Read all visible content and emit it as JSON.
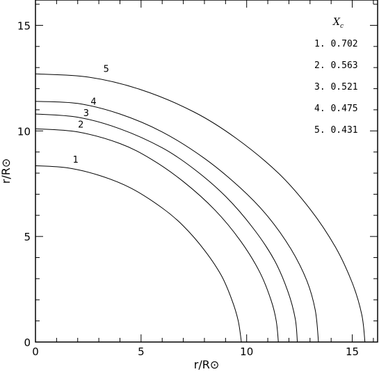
{
  "chart_data": {
    "type": "line",
    "title": "",
    "xlabel": "r/R⊙",
    "ylabel": "r/R⊙",
    "xlim": [
      0,
      16.2
    ],
    "ylim": [
      0,
      16.2
    ],
    "xticks": [
      0,
      5,
      10,
      15
    ],
    "yticks": [
      0,
      5,
      10,
      15
    ],
    "grid": false,
    "legend": {
      "title": "X",
      "title_sub": "c",
      "placement": "top-right",
      "entries": [
        "1. 0.702",
        "2. 0.563",
        "3. 0.521",
        "4. 0.475",
        "5. 0.431"
      ]
    },
    "series": [
      {
        "label": "1",
        "label_at": [
          1.9,
          8.5
        ],
        "equatorial_radius": 9.75,
        "polar_radius": 8.35,
        "points": [
          [
            0,
            8.35
          ],
          [
            1.5,
            8.25
          ],
          [
            3,
            7.9
          ],
          [
            4.5,
            7.3
          ],
          [
            6,
            6.35
          ],
          [
            7,
            5.5
          ],
          [
            8,
            4.35
          ],
          [
            8.8,
            3.15
          ],
          [
            9.3,
            2.0
          ],
          [
            9.6,
            1.0
          ],
          [
            9.75,
            0
          ]
        ]
      },
      {
        "label": "2",
        "label_at": [
          2.15,
          10.15
        ],
        "equatorial_radius": 11.5,
        "polar_radius": 10.1,
        "points": [
          [
            0,
            10.1
          ],
          [
            2,
            9.95
          ],
          [
            4,
            9.4
          ],
          [
            5.5,
            8.65
          ],
          [
            7,
            7.6
          ],
          [
            8.5,
            6.25
          ],
          [
            9.7,
            4.8
          ],
          [
            10.6,
            3.35
          ],
          [
            11.15,
            2.0
          ],
          [
            11.4,
            1.0
          ],
          [
            11.5,
            0
          ]
        ]
      },
      {
        "label": "3",
        "label_at": [
          2.4,
          10.7
        ],
        "equatorial_radius": 12.4,
        "polar_radius": 10.8,
        "points": [
          [
            0,
            10.8
          ],
          [
            2,
            10.65
          ],
          [
            4,
            10.1
          ],
          [
            6,
            9.2
          ],
          [
            7.5,
            8.2
          ],
          [
            9,
            6.9
          ],
          [
            10.3,
            5.4
          ],
          [
            11.3,
            3.9
          ],
          [
            11.95,
            2.4
          ],
          [
            12.3,
            1.1
          ],
          [
            12.4,
            0
          ]
        ]
      },
      {
        "label": "4",
        "label_at": [
          2.75,
          11.25
        ],
        "equatorial_radius": 13.4,
        "polar_radius": 11.4,
        "points": [
          [
            0,
            11.4
          ],
          [
            2,
            11.3
          ],
          [
            4,
            10.8
          ],
          [
            6,
            9.95
          ],
          [
            8,
            8.7
          ],
          [
            9.7,
            7.3
          ],
          [
            11,
            5.95
          ],
          [
            12.1,
            4.4
          ],
          [
            12.85,
            2.9
          ],
          [
            13.25,
            1.5
          ],
          [
            13.4,
            0
          ]
        ]
      },
      {
        "label": "5",
        "label_at": [
          3.35,
          12.8
        ],
        "equatorial_radius": 15.6,
        "polar_radius": 12.7,
        "points": [
          [
            0,
            12.7
          ],
          [
            2.5,
            12.55
          ],
          [
            5,
            11.95
          ],
          [
            7.5,
            10.9
          ],
          [
            9.5,
            9.65
          ],
          [
            11.5,
            8.0
          ],
          [
            13,
            6.3
          ],
          [
            14.2,
            4.5
          ],
          [
            15,
            2.8
          ],
          [
            15.45,
            1.3
          ],
          [
            15.6,
            0
          ]
        ]
      }
    ]
  }
}
